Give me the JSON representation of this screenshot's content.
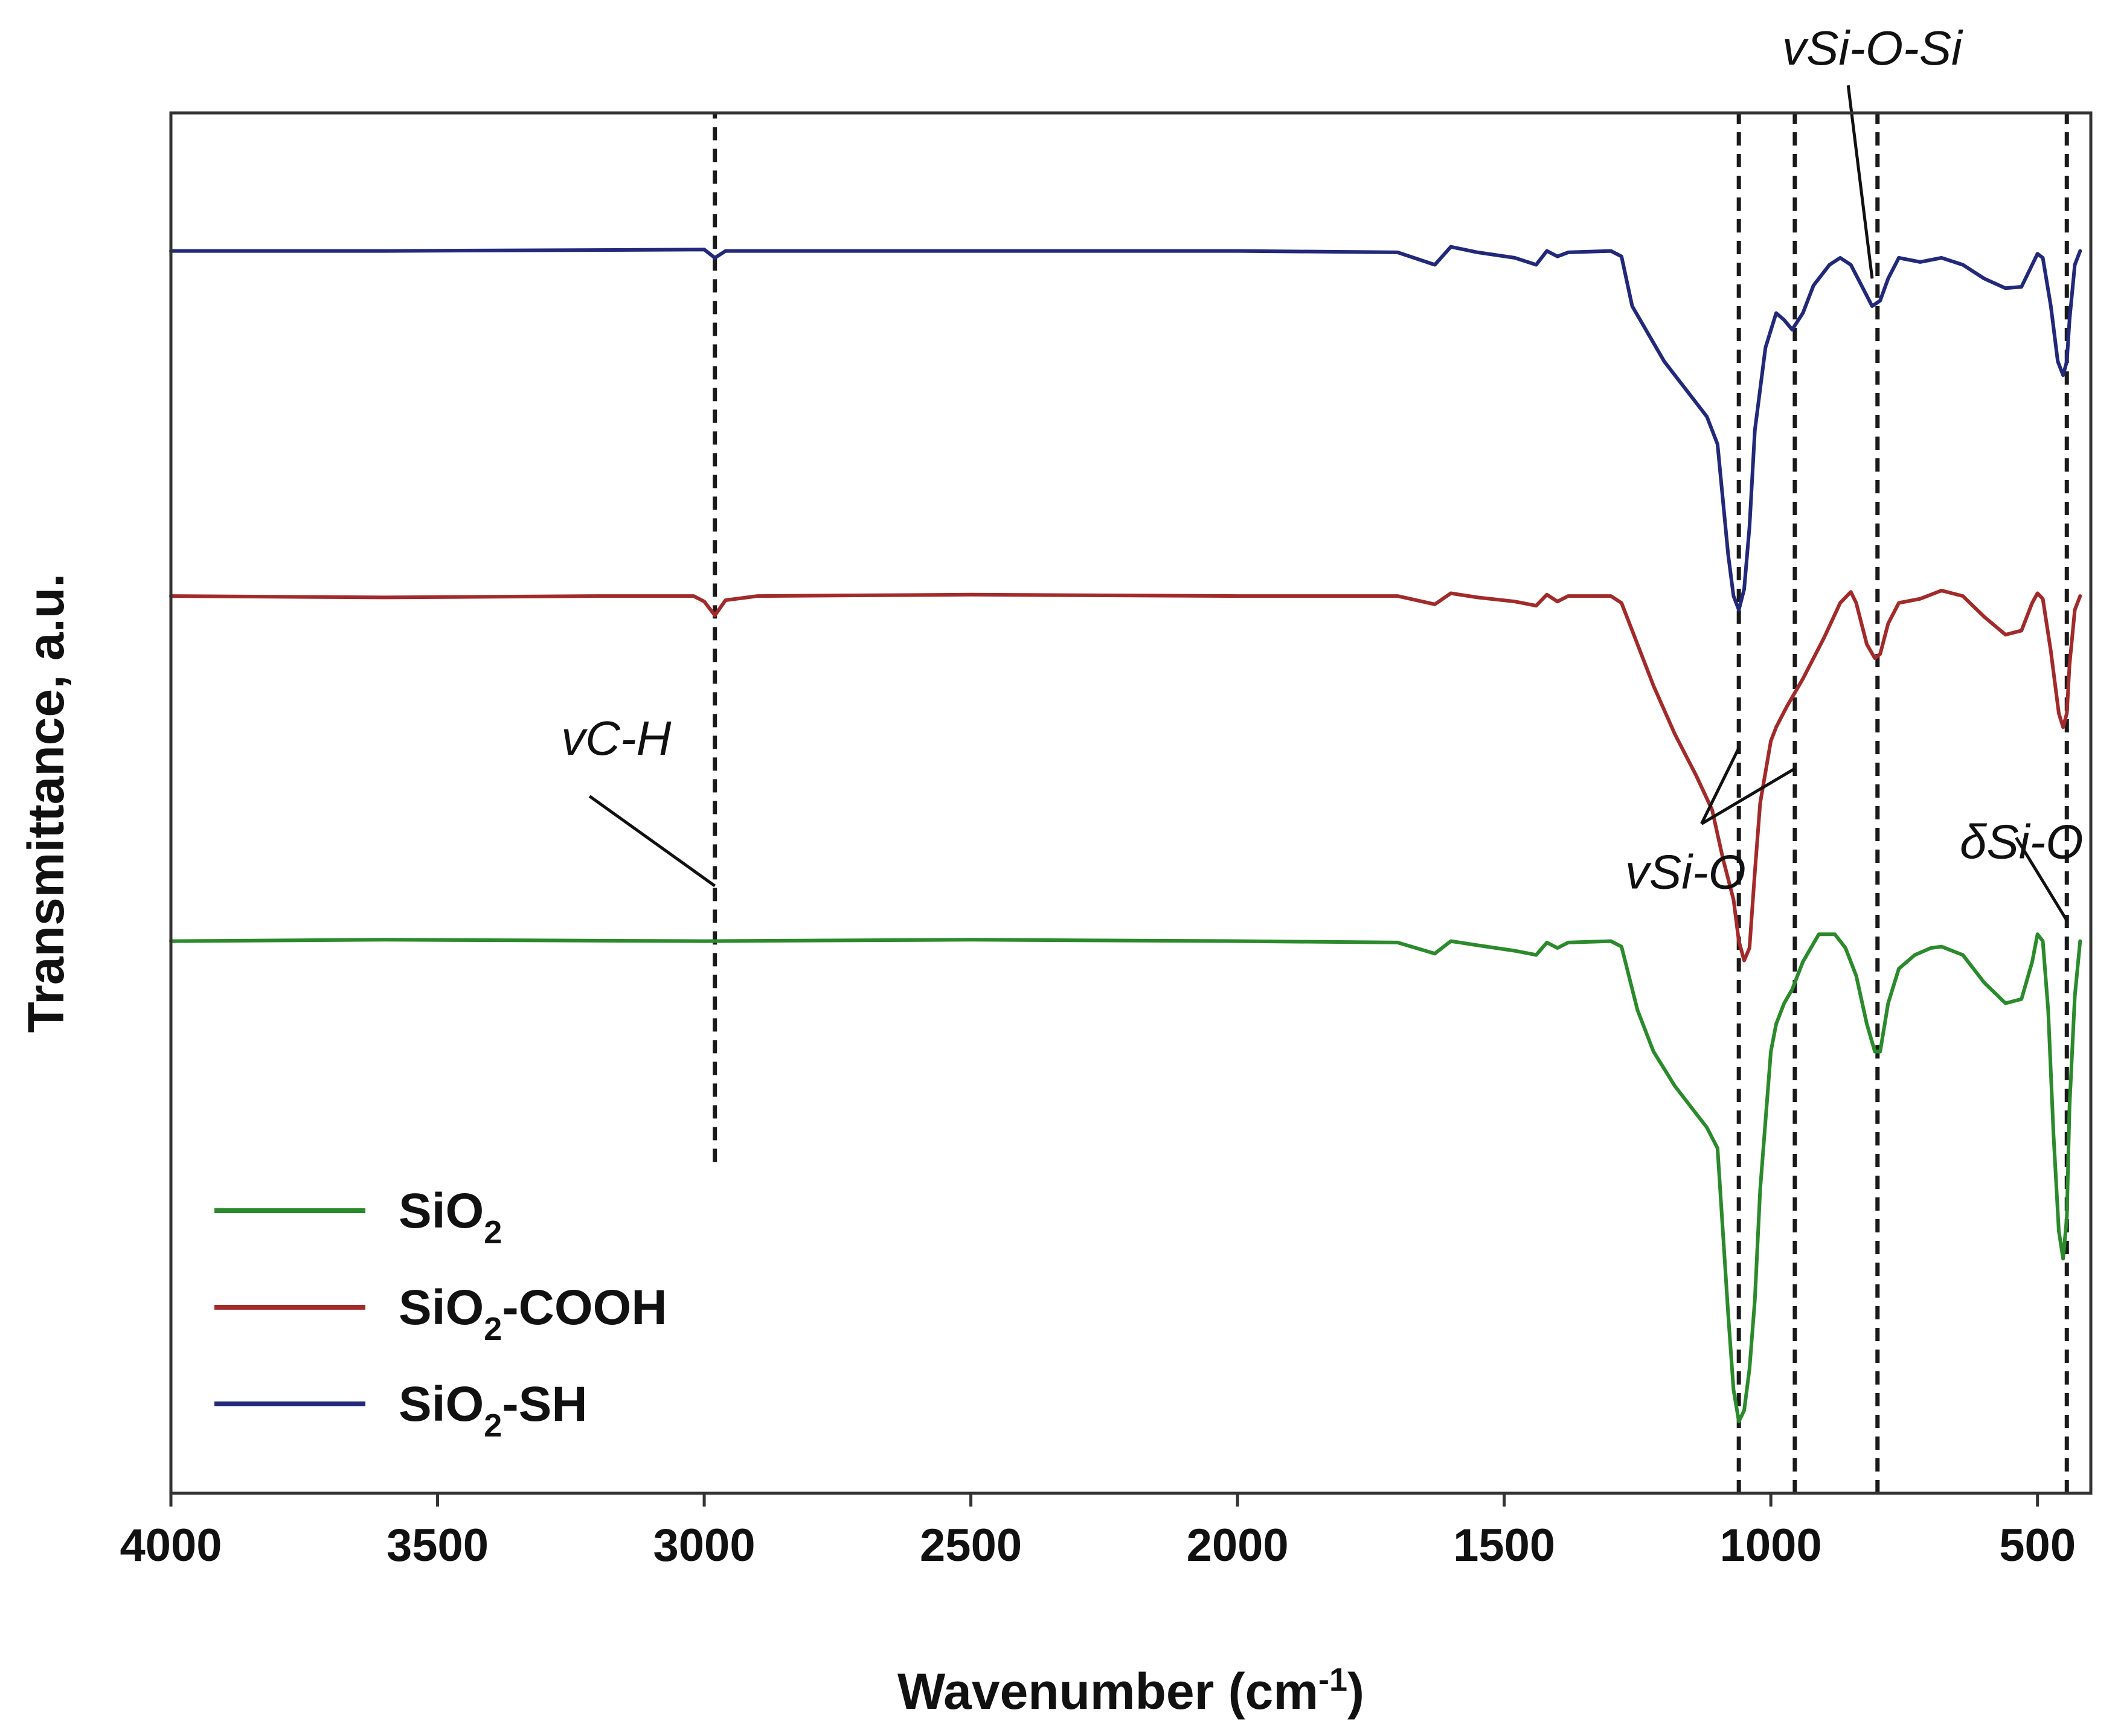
{
  "chart_data": {
    "type": "line",
    "xlabel": "Wavenumber (cm",
    "xlabel_sup": "-1",
    "xlabel_close": ")",
    "ylabel": "Transmittance, a.u.",
    "xlim": [
      4000,
      400
    ],
    "ylim": [
      0,
      100
    ],
    "x_ticks": [
      4000,
      3500,
      3000,
      2500,
      2000,
      1500,
      1000,
      500
    ],
    "x_tick_labels": [
      "4000",
      "3500",
      "3000",
      "2500",
      "2000",
      "1500",
      "1000",
      "500"
    ],
    "series": [
      {
        "name": "SiO2",
        "label_main": "SiO",
        "label_sub": "2",
        "label_tail": "",
        "color": "#2b8a2b",
        "points": [
          [
            4000,
            40.0
          ],
          [
            3600,
            40.1
          ],
          [
            3000,
            40.0
          ],
          [
            2500,
            40.1
          ],
          [
            2000,
            40.0
          ],
          [
            1700,
            39.9
          ],
          [
            1630,
            39.1
          ],
          [
            1600,
            40.0
          ],
          [
            1550,
            39.7
          ],
          [
            1480,
            39.3
          ],
          [
            1440,
            39.0
          ],
          [
            1420,
            39.9
          ],
          [
            1400,
            39.5
          ],
          [
            1380,
            39.9
          ],
          [
            1300,
            40.0
          ],
          [
            1280,
            39.6
          ],
          [
            1250,
            35.0
          ],
          [
            1220,
            32.0
          ],
          [
            1180,
            29.5
          ],
          [
            1140,
            27.5
          ],
          [
            1120,
            26.5
          ],
          [
            1100,
            25.0
          ],
          [
            1090,
            19.0
          ],
          [
            1080,
            13.0
          ],
          [
            1070,
            7.5
          ],
          [
            1060,
            5.2
          ],
          [
            1050,
            6.0
          ],
          [
            1040,
            9.0
          ],
          [
            1030,
            14.0
          ],
          [
            1020,
            22.0
          ],
          [
            1000,
            32.0
          ],
          [
            990,
            34.0
          ],
          [
            975,
            35.5
          ],
          [
            960,
            36.5
          ],
          [
            940,
            38.5
          ],
          [
            910,
            40.5
          ],
          [
            880,
            40.5
          ],
          [
            860,
            39.5
          ],
          [
            840,
            37.5
          ],
          [
            820,
            34.0
          ],
          [
            805,
            32.0
          ],
          [
            795,
            32.0
          ],
          [
            780,
            35.5
          ],
          [
            760,
            38.0
          ],
          [
            730,
            39.0
          ],
          [
            700,
            39.5
          ],
          [
            680,
            39.6
          ],
          [
            640,
            39.0
          ],
          [
            600,
            37.0
          ],
          [
            560,
            35.5
          ],
          [
            530,
            35.8
          ],
          [
            510,
            38.5
          ],
          [
            500,
            40.5
          ],
          [
            490,
            40.0
          ],
          [
            480,
            35.0
          ],
          [
            470,
            26.0
          ],
          [
            460,
            19.0
          ],
          [
            452,
            17.0
          ],
          [
            445,
            20.0
          ],
          [
            440,
            28.0
          ],
          [
            430,
            36.0
          ],
          [
            420,
            40.0
          ]
        ]
      },
      {
        "name": "SiO2-COOH",
        "label_main": "SiO",
        "label_sub": "2",
        "label_tail": "-COOH",
        "color": "#a32a2a",
        "points": [
          [
            4000,
            65.0
          ],
          [
            3600,
            64.9
          ],
          [
            3200,
            65.0
          ],
          [
            3020,
            65.0
          ],
          [
            3000,
            64.6
          ],
          [
            2980,
            63.6
          ],
          [
            2960,
            64.7
          ],
          [
            2900,
            65.0
          ],
          [
            2500,
            65.1
          ],
          [
            2000,
            65.0
          ],
          [
            1700,
            65.0
          ],
          [
            1630,
            64.4
          ],
          [
            1600,
            65.2
          ],
          [
            1550,
            64.9
          ],
          [
            1480,
            64.6
          ],
          [
            1440,
            64.3
          ],
          [
            1420,
            65.1
          ],
          [
            1400,
            64.6
          ],
          [
            1380,
            65.0
          ],
          [
            1300,
            65.0
          ],
          [
            1280,
            64.5
          ],
          [
            1250,
            61.5
          ],
          [
            1220,
            58.5
          ],
          [
            1180,
            55.0
          ],
          [
            1140,
            52.0
          ],
          [
            1110,
            49.5
          ],
          [
            1090,
            46.0
          ],
          [
            1070,
            43.0
          ],
          [
            1060,
            40.0
          ],
          [
            1050,
            38.6
          ],
          [
            1040,
            39.5
          ],
          [
            1030,
            45.0
          ],
          [
            1020,
            50.0
          ],
          [
            1000,
            54.5
          ],
          [
            990,
            55.5
          ],
          [
            970,
            57.0
          ],
          [
            940,
            59.0
          ],
          [
            900,
            62.0
          ],
          [
            870,
            64.5
          ],
          [
            850,
            65.3
          ],
          [
            840,
            64.5
          ],
          [
            820,
            61.5
          ],
          [
            805,
            60.5
          ],
          [
            795,
            60.8
          ],
          [
            780,
            63.0
          ],
          [
            760,
            64.5
          ],
          [
            720,
            64.8
          ],
          [
            680,
            65.4
          ],
          [
            640,
            65.0
          ],
          [
            600,
            63.5
          ],
          [
            560,
            62.2
          ],
          [
            530,
            62.5
          ],
          [
            510,
            64.5
          ],
          [
            500,
            65.2
          ],
          [
            490,
            64.8
          ],
          [
            475,
            61.0
          ],
          [
            460,
            56.5
          ],
          [
            452,
            55.5
          ],
          [
            445,
            56.5
          ],
          [
            440,
            60.0
          ],
          [
            430,
            64.0
          ],
          [
            420,
            65.0
          ]
        ]
      },
      {
        "name": "SiO2-SH",
        "label_main": "SiO",
        "label_sub": "2",
        "label_tail": "-SH",
        "color": "#22287a",
        "points": [
          [
            4000,
            90.0
          ],
          [
            3600,
            90.0
          ],
          [
            3000,
            90.1
          ],
          [
            2980,
            89.5
          ],
          [
            2960,
            90.0
          ],
          [
            2500,
            90.0
          ],
          [
            2000,
            90.0
          ],
          [
            1700,
            89.9
          ],
          [
            1630,
            89.0
          ],
          [
            1600,
            90.3
          ],
          [
            1550,
            89.9
          ],
          [
            1480,
            89.5
          ],
          [
            1440,
            89.0
          ],
          [
            1420,
            90.0
          ],
          [
            1400,
            89.6
          ],
          [
            1380,
            89.9
          ],
          [
            1300,
            90.0
          ],
          [
            1280,
            89.6
          ],
          [
            1260,
            86.0
          ],
          [
            1230,
            84.0
          ],
          [
            1200,
            82.0
          ],
          [
            1150,
            79.5
          ],
          [
            1120,
            78.0
          ],
          [
            1100,
            76.0
          ],
          [
            1090,
            72.0
          ],
          [
            1080,
            68.0
          ],
          [
            1070,
            65.0
          ],
          [
            1060,
            64.0
          ],
          [
            1050,
            65.5
          ],
          [
            1040,
            70.0
          ],
          [
            1030,
            77.0
          ],
          [
            1010,
            83.0
          ],
          [
            990,
            85.5
          ],
          [
            975,
            85.0
          ],
          [
            960,
            84.3
          ],
          [
            940,
            85.5
          ],
          [
            920,
            87.5
          ],
          [
            890,
            89.0
          ],
          [
            870,
            89.5
          ],
          [
            850,
            89.0
          ],
          [
            830,
            87.5
          ],
          [
            810,
            86.0
          ],
          [
            795,
            86.4
          ],
          [
            780,
            88.0
          ],
          [
            760,
            89.5
          ],
          [
            720,
            89.2
          ],
          [
            680,
            89.5
          ],
          [
            640,
            89.0
          ],
          [
            600,
            88.0
          ],
          [
            560,
            87.3
          ],
          [
            530,
            87.4
          ],
          [
            510,
            89.0
          ],
          [
            500,
            89.8
          ],
          [
            490,
            89.5
          ],
          [
            475,
            86.0
          ],
          [
            462,
            82.0
          ],
          [
            452,
            81.0
          ],
          [
            445,
            82.0
          ],
          [
            440,
            85.0
          ],
          [
            430,
            89.0
          ],
          [
            420,
            90.0
          ]
        ]
      }
    ],
    "reference_lines": [
      {
        "x": 2980,
        "y_from": 24,
        "y_to": 100
      },
      {
        "x": 1060,
        "y_from": 0,
        "y_to": 100
      },
      {
        "x": 955,
        "y_from": 0,
        "y_to": 100
      },
      {
        "x": 800,
        "y_from": 0,
        "y_to": 100
      },
      {
        "x": 445,
        "y_from": 0,
        "y_to": 100
      }
    ],
    "annotations": [
      {
        "text": "vC-H",
        "x": 3165,
        "y": 53.5,
        "pointer": [
          [
            3215,
            50.5
          ],
          [
            2980,
            44
          ]
        ]
      },
      {
        "text": "vSi-O",
        "x": 1160,
        "y": 43.8,
        "pointer": [
          [
            1130,
            48.5
          ],
          [
            1060,
            54
          ],
          [
            1130,
            48.5
          ],
          [
            955,
            52.5
          ]
        ]
      },
      {
        "text": "vSi-O-Si",
        "x": 810,
        "y": 103.5,
        "pointer": [
          [
            855,
            102
          ],
          [
            810,
            88
          ]
        ]
      },
      {
        "text": "δSi-O",
        "x": 530,
        "y": 46.0,
        "pointer": [
          [
            540,
            47.5
          ],
          [
            445,
            41.5
          ]
        ]
      }
    ],
    "legend": {
      "position": "bottom-left"
    },
    "grid": false
  }
}
